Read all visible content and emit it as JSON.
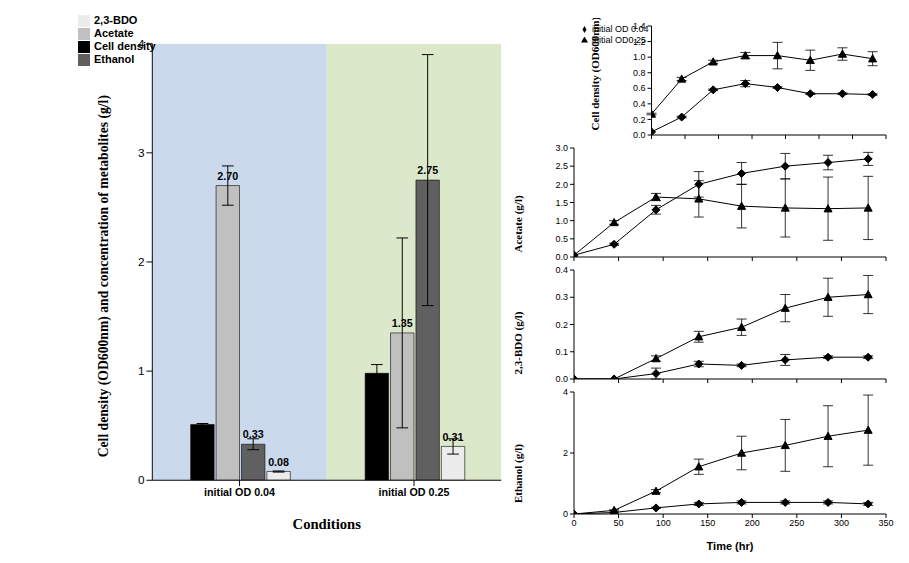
{
  "chart_data": [
    {
      "type": "bar",
      "xlabel": "Conditions",
      "ylabel": "Cell density (OD600nm) and concentration of metabolites (g/l)",
      "categories": [
        "initial OD 0.04",
        "initial OD 0.25"
      ],
      "ylim": [
        0,
        4
      ],
      "yticks": [
        0,
        1,
        2,
        3,
        4
      ],
      "legend": "upper left",
      "series": [
        {
          "name": "Cell density",
          "color": "#000000",
          "values": [
            0.51,
            0.98
          ],
          "error": [
            0.01,
            0.08
          ],
          "data_labels": false
        },
        {
          "name": "Acetate",
          "color": "#c0c0c0",
          "values": [
            2.7,
            1.35
          ],
          "error": [
            0.18,
            0.87
          ],
          "data_labels": true,
          "value_labels": [
            "2.70",
            "1.35"
          ]
        },
        {
          "name": "Ethanol",
          "color": "#606060",
          "values": [
            0.33,
            2.75
          ],
          "error": [
            0.05,
            1.15
          ],
          "data_labels": true,
          "value_labels": [
            "0.33",
            "2.75"
          ]
        },
        {
          "name": "2,3-BDO",
          "color": "#ececec",
          "values": [
            0.08,
            0.31
          ],
          "error": [
            0.005,
            0.07
          ],
          "data_labels": true,
          "value_labels": [
            "0.08",
            "0.31"
          ]
        }
      ]
    },
    {
      "type": "line",
      "ylabel": "Cell density (OD600nm)",
      "x": [
        0,
        45,
        92,
        140,
        188,
        237,
        285,
        330
      ],
      "xlim": [
        0,
        350
      ],
      "xticks": [
        0,
        50,
        100,
        150,
        200,
        250,
        300,
        350
      ],
      "ylim": [
        0,
        1.4
      ],
      "yticks": [
        {
          "value": 0,
          "label": "0.0"
        },
        {
          "value": 0.2,
          "label": "0.2"
        },
        {
          "value": 0.4,
          "label": "0.4"
        },
        {
          "value": 0.6,
          "label": "0.6"
        },
        {
          "value": 0.8,
          "label": "0.8"
        },
        {
          "value": 1,
          "label": "1.0"
        },
        {
          "value": 1.2,
          "label": "1.2"
        },
        {
          "value": 1.4,
          "label": "1.4"
        }
      ],
      "tick_labels": "y",
      "legend": "upper left",
      "series": [
        {
          "name": "initial OD 0.04",
          "color": "#000000",
          "marker": "diamond",
          "values": [
            0.04,
            0.23,
            0.58,
            0.66,
            0.61,
            0.53,
            0.53,
            0.52
          ],
          "error": [
            0,
            0.01,
            0.01,
            0.04,
            0.01,
            0.01,
            0.01,
            0.01
          ]
        },
        {
          "name": "initial OD0.25",
          "color": "#000000",
          "marker": "triangle",
          "values": [
            0.27,
            0.72,
            0.94,
            1.02,
            1.02,
            0.96,
            1.04,
            0.98
          ],
          "error": [
            0.01,
            0.02,
            0.02,
            0.04,
            0.17,
            0.13,
            0.08,
            0.09
          ]
        }
      ]
    },
    {
      "type": "line",
      "ylabel": "Acetate (g/l)",
      "x": [
        0,
        45,
        92,
        140,
        188,
        237,
        285,
        330
      ],
      "xlim": [
        0,
        350
      ],
      "xticks": [
        0,
        50,
        100,
        150,
        200,
        250,
        300,
        350
      ],
      "ylim": [
        0,
        3
      ],
      "yticks": [
        {
          "value": 0,
          "label": "0.0"
        },
        {
          "value": 0.5,
          "label": "0.5"
        },
        {
          "value": 1,
          "label": "1.0"
        },
        {
          "value": 1.5,
          "label": "1.5"
        },
        {
          "value": 2,
          "label": "2.0"
        },
        {
          "value": 2.5,
          "label": "2.5"
        },
        {
          "value": 3,
          "label": "3.0"
        }
      ],
      "tick_labels": "y",
      "series": [
        {
          "name": "initial OD 0.04",
          "color": "#000000",
          "marker": "diamond",
          "values": [
            0.05,
            0.35,
            1.3,
            2.0,
            2.3,
            2.5,
            2.6,
            2.7
          ],
          "error": [
            0,
            0.03,
            0.12,
            0.35,
            0.3,
            0.35,
            0.2,
            0.18
          ]
        },
        {
          "name": "initial OD0.25",
          "color": "#000000",
          "marker": "triangle",
          "values": [
            0.05,
            0.95,
            1.65,
            1.6,
            1.4,
            1.35,
            1.33,
            1.35
          ],
          "error": [
            0,
            0.05,
            0.1,
            0.5,
            0.6,
            0.8,
            0.87,
            0.87
          ]
        }
      ]
    },
    {
      "type": "line",
      "ylabel": "2,3-BDO (g/l)",
      "x": [
        0,
        45,
        92,
        140,
        188,
        237,
        285,
        330
      ],
      "xlim": [
        0,
        350
      ],
      "xticks": [
        0,
        50,
        100,
        150,
        200,
        250,
        300,
        350
      ],
      "ylim": [
        0,
        0.4
      ],
      "yticks": [
        {
          "value": 0,
          "label": "0.0"
        },
        {
          "value": 0.1,
          "label": "0.1"
        },
        {
          "value": 0.2,
          "label": "0.2"
        },
        {
          "value": 0.3,
          "label": "0.3"
        },
        {
          "value": 0.4,
          "label": "0.4"
        }
      ],
      "tick_labels": "y",
      "series": [
        {
          "name": "initial OD 0.04",
          "color": "#000000",
          "marker": "diamond",
          "values": [
            0,
            0,
            0.02,
            0.055,
            0.05,
            0.07,
            0.08,
            0.08
          ],
          "error": [
            0,
            0,
            0.02,
            0.01,
            0.005,
            0.02,
            0.005,
            0.005
          ]
        },
        {
          "name": "initial OD0.25",
          "color": "#000000",
          "marker": "triangle",
          "values": [
            0,
            0,
            0.075,
            0.155,
            0.19,
            0.26,
            0.3,
            0.31
          ],
          "error": [
            0,
            0,
            0.01,
            0.02,
            0.03,
            0.05,
            0.07,
            0.07
          ]
        }
      ]
    },
    {
      "type": "line",
      "xlabel": "Time (hr)",
      "ylabel": "Ethanol (g/l)",
      "x": [
        0,
        45,
        92,
        140,
        188,
        237,
        285,
        330
      ],
      "xlim": [
        0,
        350
      ],
      "xticks": [
        0,
        50,
        100,
        150,
        200,
        250,
        300,
        350
      ],
      "ylim": [
        0,
        4
      ],
      "yticks": [
        0,
        2,
        4
      ],
      "series": [
        {
          "name": "initial OD 0.04",
          "color": "#000000",
          "marker": "diamond",
          "values": [
            0,
            0.05,
            0.2,
            0.33,
            0.38,
            0.38,
            0.38,
            0.33
          ],
          "error": [
            0,
            0,
            0.02,
            0.05,
            0.05,
            0.05,
            0.05,
            0.05
          ]
        },
        {
          "name": "initial OD0.25",
          "color": "#000000",
          "marker": "triangle",
          "values": [
            0,
            0.12,
            0.75,
            1.55,
            2.0,
            2.25,
            2.55,
            2.75
          ],
          "error": [
            0,
            0.02,
            0.05,
            0.25,
            0.55,
            0.85,
            1.0,
            1.15
          ]
        }
      ]
    }
  ]
}
